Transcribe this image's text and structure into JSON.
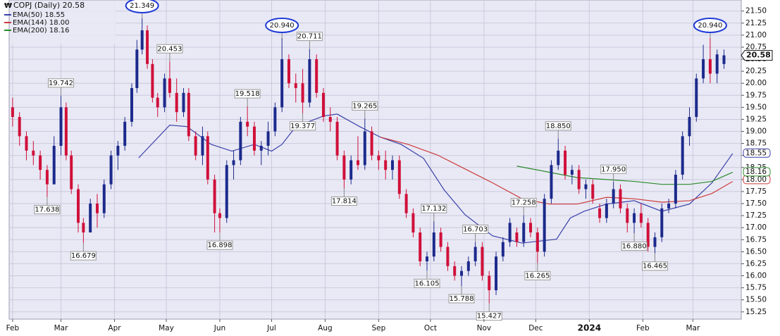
{
  "chart_data": {
    "type": "candlestick",
    "title": "COPJ (Daily) 20.58",
    "up_color": "#1c2a8c",
    "down_color": "#d0103a",
    "grid": true,
    "xlim": [
      -2,
      422
    ],
    "ylim": [
      15.1,
      21.73
    ],
    "xticks": [
      {
        "value": 0,
        "label": "Feb"
      },
      {
        "value": 28,
        "label": "Mar"
      },
      {
        "value": 59,
        "label": "Apr"
      },
      {
        "value": 89,
        "label": "May"
      },
      {
        "value": 120,
        "label": "Jun"
      },
      {
        "value": 150,
        "label": "Jul"
      },
      {
        "value": 181,
        "label": "Aug"
      },
      {
        "value": 212,
        "label": "Sep"
      },
      {
        "value": 242,
        "label": "Oct"
      },
      {
        "value": 273,
        "label": "Nov"
      },
      {
        "value": 303,
        "label": "Dec"
      },
      {
        "value": 334,
        "label": "2024"
      },
      {
        "value": 365,
        "label": "Feb"
      },
      {
        "value": 394,
        "label": "Mar"
      }
    ],
    "yticks": [
      {
        "value": 15.25,
        "label": "15.25"
      },
      {
        "value": 15.5,
        "label": "15.50"
      },
      {
        "value": 15.75,
        "label": "15.75"
      },
      {
        "value": 16,
        "label": "16.00"
      },
      {
        "value": 16.25,
        "label": "16.25"
      },
      {
        "value": 16.5,
        "label": "16.50"
      },
      {
        "value": 16.75,
        "label": "16.75"
      },
      {
        "value": 17,
        "label": "17.00"
      },
      {
        "value": 17.25,
        "label": "17.25"
      },
      {
        "value": 17.5,
        "label": "17.50"
      },
      {
        "value": 17.75,
        "label": "17.75"
      },
      {
        "value": 18,
        "label": "18.00"
      },
      {
        "value": 18.25,
        "label": "18.25"
      },
      {
        "value": 18.5,
        "label": "18.50"
      },
      {
        "value": 18.75,
        "label": "18.75"
      },
      {
        "value": 19,
        "label": "19.00"
      },
      {
        "value": 19.25,
        "label": "19.25"
      },
      {
        "value": 19.5,
        "label": "19.50"
      },
      {
        "value": 19.75,
        "label": "19.75"
      },
      {
        "value": 20,
        "label": "20.00"
      },
      {
        "value": 20.25,
        "label": "20.25"
      },
      {
        "value": 20.5,
        "label": "20.50"
      },
      {
        "value": 20.75,
        "label": "20.75"
      },
      {
        "value": 21,
        "label": "21.00"
      },
      {
        "value": 21.25,
        "label": "21.25"
      },
      {
        "value": 21.5,
        "label": "21.50"
      }
    ],
    "x": [
      0,
      4,
      8,
      12,
      16,
      20,
      24,
      28,
      31,
      34,
      38,
      41,
      45,
      49,
      53,
      57,
      61,
      65,
      69,
      72,
      75,
      78,
      81,
      84,
      88,
      91,
      95,
      99,
      102,
      106,
      110,
      113,
      117,
      120,
      124,
      128,
      132,
      136,
      140,
      144,
      148,
      152,
      156,
      160,
      164,
      168,
      172,
      176,
      180,
      184,
      188,
      192,
      196,
      200,
      204,
      208,
      212,
      216,
      220,
      224,
      228,
      232,
      236,
      240,
      244,
      248,
      252,
      256,
      260,
      264,
      268,
      272,
      276,
      280,
      284,
      288,
      292,
      296,
      300,
      304,
      308,
      312,
      316,
      320,
      324,
      328,
      332,
      336,
      340,
      344,
      348,
      352,
      356,
      360,
      364,
      368,
      372,
      376,
      380,
      384,
      388,
      392,
      396,
      400,
      404,
      408,
      412
    ],
    "open": [
      19.5,
      19.3,
      18.9,
      18.6,
      18.5,
      18.2,
      17.9,
      18.7,
      19.5,
      18.5,
      17.8,
      17.1,
      16.9,
      17.5,
      17.3,
      17.9,
      18.5,
      18.7,
      19.2,
      19.9,
      20.7,
      21.1,
      20.4,
      19.7,
      19.5,
      20.1,
      19.8,
      19.4,
      19.8,
      18.9,
      18.5,
      18.9,
      18.0,
      17.3,
      17.2,
      18.3,
      18.4,
      19.2,
      19.1,
      18.6,
      18.7,
      19.0,
      19.5,
      20.5,
      20.0,
      20.0,
      19.6,
      20.5,
      19.8,
      19.3,
      19.2,
      18.5,
      18.0,
      18.4,
      18.3,
      19.0,
      18.5,
      18.4,
      18.2,
      18.4,
      17.7,
      17.3,
      16.9,
      16.3,
      16.4,
      16.9,
      16.6,
      16.2,
      16.0,
      16.1,
      16.3,
      16.6,
      16.0,
      15.7,
      16.4,
      16.7,
      16.9,
      16.7,
      17.1,
      16.9,
      16.5,
      17.6,
      18.3,
      18.6,
      18.1,
      18.2,
      17.8,
      17.9,
      17.4,
      17.2,
      17.5,
      17.8,
      17.4,
      17.1,
      17.3,
      17.1,
      16.6,
      16.8,
      17.4,
      17.5,
      18.1,
      18.9,
      19.3,
      20.1,
      20.5,
      20.2,
      20.4
    ],
    "high": [
      19.7,
      19.4,
      19.0,
      18.8,
      18.6,
      18.3,
      18.9,
      19.742,
      19.6,
      18.6,
      17.9,
      17.2,
      17.6,
      17.7,
      18.0,
      18.6,
      18.8,
      19.3,
      20.0,
      20.9,
      21.349,
      21.2,
      20.5,
      19.8,
      20.2,
      20.453,
      20.1,
      19.9,
      19.9,
      19.0,
      19.1,
      19.0,
      18.1,
      17.4,
      18.4,
      18.6,
      19.3,
      19.518,
      19.2,
      18.8,
      19.2,
      19.6,
      20.94,
      20.6,
      20.2,
      20.3,
      20.711,
      20.6,
      19.9,
      19.5,
      19.3,
      18.6,
      18.5,
      18.9,
      19.265,
      19.1,
      18.6,
      18.6,
      18.5,
      18.5,
      17.8,
      17.4,
      17.0,
      16.5,
      17.132,
      17.0,
      16.7,
      16.3,
      16.2,
      16.4,
      16.703,
      16.7,
      16.1,
      16.5,
      16.8,
      17.2,
      17.0,
      17.258,
      17.2,
      17.0,
      17.7,
      18.4,
      18.85,
      18.7,
      18.3,
      18.3,
      18.0,
      18.0,
      17.5,
      17.6,
      17.95,
      17.9,
      17.5,
      17.4,
      17.5,
      17.2,
      16.9,
      17.5,
      17.6,
      18.2,
      19.0,
      19.5,
      20.2,
      20.8,
      20.94,
      20.7,
      20.7
    ],
    "low": [
      19.1,
      18.7,
      18.4,
      18.3,
      18.0,
      17.638,
      17.9,
      18.5,
      18.4,
      17.7,
      16.9,
      16.679,
      16.9,
      17.0,
      17.2,
      17.8,
      18.2,
      18.6,
      19.1,
      19.8,
      20.6,
      20.3,
      19.6,
      19.3,
      19.4,
      19.7,
      19.2,
      19.3,
      18.8,
      18.4,
      18.3,
      17.9,
      16.9,
      16.898,
      17.1,
      18.0,
      18.3,
      18.9,
      18.5,
      18.3,
      18.5,
      18.9,
      19.4,
      19.9,
      19.6,
      19.377,
      19.5,
      19.7,
      19.2,
      19.0,
      18.4,
      17.814,
      17.9,
      18.2,
      18.2,
      18.4,
      18.2,
      18.0,
      18.0,
      17.6,
      17.2,
      16.8,
      16.2,
      16.105,
      16.3,
      16.5,
      16.1,
      15.9,
      15.788,
      16.0,
      16.2,
      15.9,
      15.427,
      15.6,
      16.3,
      16.6,
      16.6,
      16.6,
      16.8,
      16.265,
      16.4,
      17.5,
      18.2,
      18.0,
      17.9,
      17.7,
      17.6,
      17.5,
      17.1,
      17.1,
      17.4,
      17.3,
      16.9,
      16.88,
      17.0,
      16.5,
      16.465,
      16.7,
      17.3,
      17.4,
      18.0,
      18.7,
      19.2,
      20.0,
      20.0,
      20.0,
      20.3
    ],
    "close": [
      19.3,
      18.9,
      18.6,
      18.5,
      18.2,
      17.9,
      18.7,
      19.5,
      18.5,
      17.8,
      17.1,
      16.9,
      17.5,
      17.3,
      17.9,
      18.5,
      18.7,
      19.2,
      19.9,
      20.7,
      21.1,
      20.4,
      19.7,
      19.5,
      20.1,
      19.8,
      19.4,
      19.8,
      18.9,
      18.5,
      18.9,
      18.0,
      17.3,
      17.2,
      18.3,
      18.4,
      19.2,
      19.1,
      18.6,
      18.7,
      19.0,
      19.5,
      20.5,
      20.0,
      19.9,
      19.6,
      20.5,
      19.8,
      19.3,
      19.2,
      18.5,
      18.0,
      18.4,
      18.3,
      19.0,
      18.5,
      18.4,
      18.2,
      18.4,
      17.7,
      17.3,
      16.9,
      16.3,
      16.4,
      16.9,
      16.6,
      16.2,
      16.0,
      16.1,
      16.3,
      16.6,
      16.0,
      15.7,
      16.4,
      16.7,
      17.1,
      16.7,
      17.1,
      16.9,
      16.5,
      17.6,
      18.3,
      18.6,
      18.1,
      18.2,
      17.8,
      17.9,
      17.6,
      17.2,
      17.5,
      17.8,
      17.4,
      17.1,
      17.3,
      17.1,
      16.6,
      16.8,
      17.4,
      17.5,
      18.1,
      18.9,
      19.3,
      20.1,
      20.5,
      20.2,
      20.6,
      20.58
    ],
    "last_price": {
      "value": 20.58,
      "label": "20.58"
    },
    "series": [
      {
        "name": "EMA(50) 18.55",
        "color": "#3a3fa8",
        "x": [
          73,
          91,
          101,
          115,
          127,
          140,
          150,
          156,
          164,
          180,
          188,
          201,
          213,
          225,
          238,
          250,
          262,
          278,
          295,
          315,
          323,
          331,
          344,
          360,
          376,
          392,
          405,
          417
        ],
        "values": [
          18.45,
          19.13,
          19.1,
          18.73,
          18.59,
          18.73,
          18.59,
          18.73,
          19.1,
          19.32,
          19.36,
          19.1,
          18.88,
          18.73,
          18.44,
          17.78,
          17.27,
          16.83,
          16.68,
          16.76,
          17.2,
          17.34,
          17.49,
          17.56,
          17.34,
          17.49,
          17.93,
          18.54
        ],
        "tag": {
          "value": 18.55,
          "label": "18.55"
        }
      },
      {
        "name": "EMA(144) 18.00",
        "color": "#cc3b3b",
        "x": [
          213,
          229,
          246,
          262,
          278,
          295,
          311,
          327,
          344,
          360,
          376,
          392,
          405,
          417
        ],
        "values": [
          18.88,
          18.73,
          18.51,
          18.22,
          17.93,
          17.6,
          17.49,
          17.49,
          17.63,
          17.6,
          17.53,
          17.56,
          17.71,
          17.96
        ],
        "tag": {
          "value": 18.0,
          "label": "18.00"
        }
      },
      {
        "name": "EMA(200) 18.16",
        "color": "#2b8a2b",
        "x": [
          292,
          311,
          327,
          344,
          360,
          376,
          392,
          405,
          417
        ],
        "values": [
          18.28,
          18.15,
          18.04,
          18.0,
          17.96,
          17.9,
          17.9,
          17.96,
          18.15
        ],
        "tag": {
          "value": 18.16,
          "label": "18.16"
        }
      }
    ],
    "annotations": [
      {
        "x": 28,
        "value": 19.742,
        "label": "19.742"
      },
      {
        "x": 20,
        "value": 17.638,
        "label": "17.638"
      },
      {
        "x": 41,
        "value": 16.679,
        "label": "16.679"
      },
      {
        "x": 75,
        "value": 21.349,
        "label": "21.349",
        "circled": true
      },
      {
        "x": 91,
        "value": 20.453,
        "label": "20.453"
      },
      {
        "x": 120,
        "value": 16.898,
        "label": "16.898"
      },
      {
        "x": 136,
        "value": 19.518,
        "label": "19.518"
      },
      {
        "x": 156,
        "value": 20.94,
        "label": "20.940",
        "circled": true
      },
      {
        "x": 168,
        "value": 19.377,
        "label": "19.377"
      },
      {
        "x": 172,
        "value": 20.711,
        "label": "20.711"
      },
      {
        "x": 192,
        "value": 17.814,
        "label": "17.814"
      },
      {
        "x": 204,
        "value": 19.265,
        "label": "19.265"
      },
      {
        "x": 240,
        "value": 16.105,
        "label": "16.105"
      },
      {
        "x": 244,
        "value": 17.132,
        "label": "17.132"
      },
      {
        "x": 260,
        "value": 15.788,
        "label": "15.788"
      },
      {
        "x": 268,
        "value": 16.703,
        "label": "16.703"
      },
      {
        "x": 276,
        "value": 15.427,
        "label": "15.427"
      },
      {
        "x": 296,
        "value": 17.258,
        "label": "17.258"
      },
      {
        "x": 304,
        "value": 16.265,
        "label": "16.265"
      },
      {
        "x": 316,
        "value": 18.85,
        "label": "18.850"
      },
      {
        "x": 348,
        "value": 17.95,
        "label": "17.950"
      },
      {
        "x": 360,
        "value": 16.88,
        "label": "16.880"
      },
      {
        "x": 372,
        "value": 16.465,
        "label": "16.465"
      },
      {
        "x": 404,
        "value": 20.94,
        "label": "20.940",
        "circled": true
      }
    ],
    "extra_annotations_note_free": null
  }
}
